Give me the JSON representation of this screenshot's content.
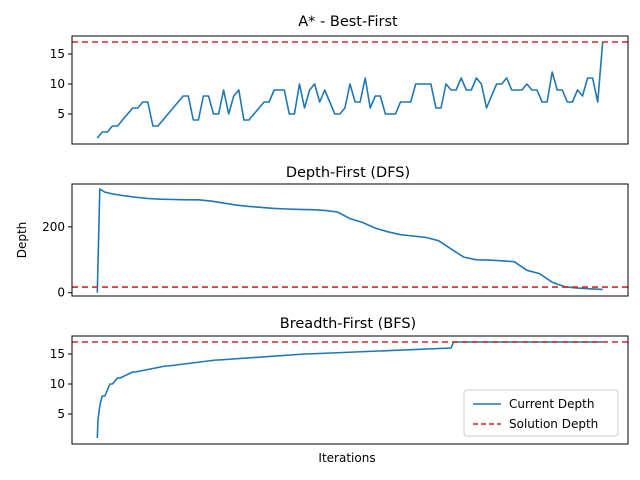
{
  "figure": {
    "xlabel": "Iterations",
    "ylabel": "Depth"
  },
  "legend": {
    "position": "lower right",
    "entries": [
      {
        "label": "Current Depth",
        "color": "#1f77b4",
        "style": "solid"
      },
      {
        "label": "Solution Depth",
        "color": "#d62728",
        "style": "dashed"
      }
    ]
  },
  "chart_data": [
    {
      "type": "line",
      "title": "A* - Best-First",
      "ylim": [
        0,
        18
      ],
      "yticks": [
        5,
        10,
        15
      ],
      "solution_depth": 17,
      "series": [
        {
          "name": "Current Depth",
          "color": "#1f77b4",
          "x": [
            0,
            2,
            4,
            6,
            8,
            10,
            12,
            14,
            16,
            18,
            20,
            22,
            24,
            26,
            28,
            30,
            32,
            34,
            36,
            38,
            40,
            42,
            44,
            46,
            48,
            50,
            52,
            54,
            56,
            58,
            60,
            62,
            64,
            66,
            68,
            70,
            72,
            74,
            76,
            78,
            80,
            82,
            84,
            86,
            88,
            90,
            92,
            94,
            96,
            98,
            100,
            102,
            104,
            106,
            108,
            110,
            112,
            114,
            116,
            118,
            120,
            122,
            124,
            126,
            128,
            130,
            132,
            134,
            136,
            138,
            140,
            142,
            144,
            146,
            148,
            150,
            152,
            154,
            156,
            158,
            160,
            162,
            164,
            166,
            168,
            170,
            172,
            174,
            176,
            178,
            180,
            182,
            184,
            186,
            188,
            190,
            192,
            194,
            196,
            198,
            200
          ],
          "y": [
            1,
            2,
            2,
            3,
            3,
            4,
            5,
            6,
            6,
            7,
            7,
            3,
            3,
            4,
            5,
            6,
            7,
            8,
            8,
            4,
            4,
            8,
            8,
            5,
            5,
            9,
            5,
            8,
            9,
            4,
            4,
            5,
            6,
            7,
            7,
            9,
            9,
            9,
            5,
            5,
            10,
            6,
            9,
            10,
            7,
            9,
            7,
            5,
            5,
            6,
            10,
            7,
            7,
            11,
            6,
            8,
            8,
            5,
            5,
            5,
            7,
            7,
            7,
            10,
            10,
            10,
            10,
            6,
            6,
            10,
            9,
            9,
            11,
            9,
            9,
            11,
            10,
            6,
            8,
            10,
            10,
            11,
            9,
            9,
            9,
            10,
            9,
            9,
            7,
            7,
            12,
            9,
            9,
            7,
            7,
            9,
            8,
            11,
            11,
            7,
            17
          ]
        }
      ]
    },
    {
      "type": "line",
      "title": "Depth-First (DFS)",
      "ylim": [
        -10,
        330
      ],
      "yticks": [
        0,
        200
      ],
      "solution_depth": 17,
      "series": [
        {
          "name": "Current Depth",
          "color": "#1f77b4",
          "x": [
            0,
            1,
            3,
            6,
            10,
            15,
            20,
            25,
            30,
            35,
            40,
            45,
            50,
            55,
            60,
            65,
            70,
            75,
            80,
            85,
            90,
            95,
            100,
            105,
            110,
            115,
            120,
            125,
            130,
            135,
            140,
            145,
            150,
            155,
            160,
            165,
            170,
            175,
            180,
            185,
            190,
            195,
            200
          ],
          "y": [
            0,
            315,
            305,
            300,
            295,
            290,
            286,
            284,
            283,
            282,
            282,
            278,
            272,
            266,
            262,
            259,
            256,
            254,
            253,
            252,
            250,
            245,
            225,
            213,
            196,
            185,
            176,
            172,
            168,
            158,
            133,
            108,
            100,
            99,
            97,
            94,
            68,
            58,
            32,
            18,
            14,
            12,
            10
          ]
        }
      ]
    },
    {
      "type": "line",
      "title": "Breadth-First (BFS)",
      "ylim": [
        0,
        18
      ],
      "yticks": [
        5,
        10,
        15
      ],
      "solution_depth": 17,
      "series": [
        {
          "name": "Current Depth",
          "color": "#1f77b4",
          "x": [
            0,
            0.3,
            0.6,
            0.9,
            1.3,
            2,
            3,
            4,
            5,
            6,
            8,
            9,
            14,
            15,
            27,
            28,
            47,
            48,
            82,
            83,
            140,
            141,
            200
          ],
          "y": [
            1,
            4,
            5,
            6,
            7,
            8,
            8,
            9,
            10,
            10,
            11,
            11,
            12,
            12,
            13,
            13,
            14,
            14,
            15,
            15,
            16,
            17,
            17
          ]
        }
      ]
    }
  ]
}
